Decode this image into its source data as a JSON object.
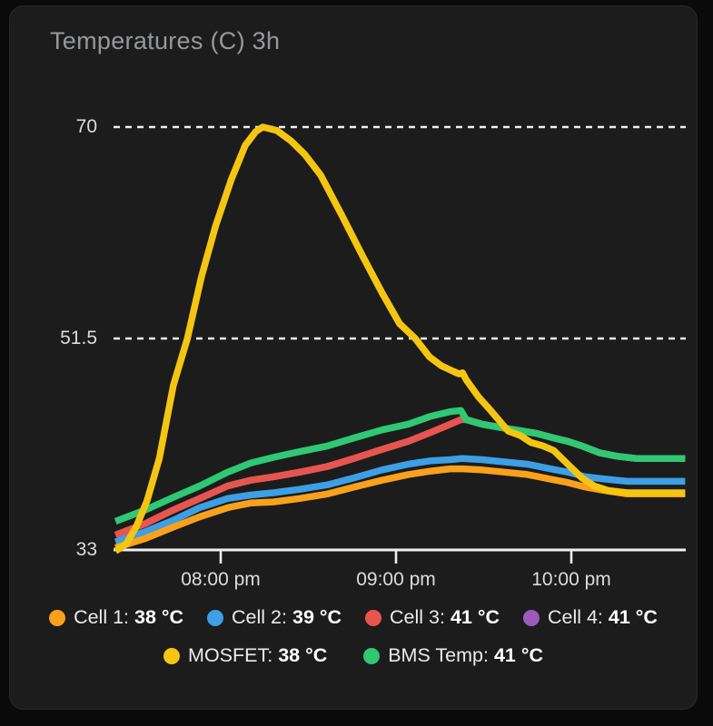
{
  "card": {
    "title": "Temperatures (C) 3h"
  },
  "colors": {
    "background": "#0a0a0a",
    "card_background": "#1c1c1d",
    "grid": "#efefef",
    "axis_text": "#dcdcdc",
    "title_text": "#96989a"
  },
  "chart_data": {
    "type": "line",
    "title": "Temperatures (C) 3h",
    "unit": "°C",
    "grid": "dashed horizontal",
    "legend_position": "bottom",
    "x_axis": {
      "range_hours": [
        19.4,
        22.65
      ],
      "ticks": [
        {
          "t": 20,
          "label": "08:00 pm"
        },
        {
          "t": 21,
          "label": "09:00 pm"
        },
        {
          "t": 22,
          "label": "10:00 pm"
        }
      ]
    },
    "y_axis": {
      "range": [
        33,
        70
      ],
      "ticks": [
        {
          "value": 70,
          "label": "70",
          "gridline": true
        },
        {
          "value": 51.5,
          "label": "51.5",
          "gridline": true
        },
        {
          "value": 33,
          "label": "33",
          "gridline": false
        }
      ]
    },
    "draw_order": [
      "cell4",
      "cell3",
      "bms",
      "cell2",
      "cell1",
      "mosfet"
    ],
    "series": [
      {
        "id": "cell1",
        "name": "Cell 1",
        "color": "#F9A11B",
        "current": "38 °C",
        "points": [
          [
            19.4,
            33.2
          ],
          [
            19.57,
            34.0
          ],
          [
            19.73,
            35.0
          ],
          [
            19.88,
            35.9
          ],
          [
            20.04,
            36.7
          ],
          [
            20.17,
            37.1
          ],
          [
            20.3,
            37.2
          ],
          [
            20.45,
            37.5
          ],
          [
            20.61,
            37.9
          ],
          [
            20.76,
            38.5
          ],
          [
            20.92,
            39.1
          ],
          [
            21.07,
            39.6
          ],
          [
            21.2,
            39.9
          ],
          [
            21.31,
            40.1
          ],
          [
            21.38,
            40.1
          ],
          [
            21.49,
            40.0
          ],
          [
            21.62,
            39.8
          ],
          [
            21.75,
            39.6
          ],
          [
            21.88,
            39.2
          ],
          [
            21.98,
            38.9
          ],
          [
            22.08,
            38.5
          ],
          [
            22.19,
            38.2
          ],
          [
            22.32,
            37.9
          ],
          [
            22.65,
            37.9
          ]
        ]
      },
      {
        "id": "cell2",
        "name": "Cell 2",
        "color": "#3D9FE5",
        "current": "39 °C",
        "points": [
          [
            19.4,
            33.7
          ],
          [
            19.57,
            34.6
          ],
          [
            19.73,
            35.6
          ],
          [
            19.88,
            36.7
          ],
          [
            20.04,
            37.5
          ],
          [
            20.17,
            37.8
          ],
          [
            20.3,
            38.0
          ],
          [
            20.45,
            38.3
          ],
          [
            20.61,
            38.7
          ],
          [
            20.76,
            39.3
          ],
          [
            20.92,
            40.0
          ],
          [
            21.07,
            40.5
          ],
          [
            21.2,
            40.8
          ],
          [
            21.31,
            40.9
          ],
          [
            21.38,
            41.0
          ],
          [
            21.49,
            40.9
          ],
          [
            21.62,
            40.7
          ],
          [
            21.75,
            40.5
          ],
          [
            21.88,
            40.1
          ],
          [
            21.98,
            39.8
          ],
          [
            22.08,
            39.4
          ],
          [
            22.19,
            39.2
          ],
          [
            22.32,
            39.0
          ],
          [
            22.65,
            39.0
          ]
        ]
      },
      {
        "id": "cell3",
        "name": "Cell 3",
        "color": "#E8554D",
        "current": "41 °C",
        "points": [
          [
            19.4,
            34.3
          ],
          [
            19.57,
            35.3
          ],
          [
            19.73,
            36.5
          ],
          [
            19.88,
            37.5
          ],
          [
            20.04,
            38.6
          ],
          [
            20.17,
            39.1
          ],
          [
            20.3,
            39.4
          ],
          [
            20.45,
            39.8
          ],
          [
            20.61,
            40.3
          ],
          [
            20.76,
            41.0
          ],
          [
            20.92,
            41.8
          ],
          [
            21.07,
            42.5
          ],
          [
            21.2,
            43.3
          ],
          [
            21.31,
            44.0
          ],
          [
            21.37,
            44.4
          ],
          [
            21.4,
            44.4
          ],
          [
            21.49,
            44.0
          ],
          [
            21.64,
            43.6
          ],
          [
            21.8,
            43.2
          ],
          [
            21.9,
            42.8
          ],
          [
            21.98,
            42.5
          ],
          [
            22.06,
            42.1
          ],
          [
            22.16,
            41.5
          ],
          [
            22.26,
            41.2
          ],
          [
            22.37,
            41.0
          ],
          [
            22.65,
            41.0
          ]
        ]
      },
      {
        "id": "cell4",
        "name": "Cell 4",
        "color": "#9E59BD",
        "current": "41 °C",
        "points": [
          [
            19.4,
            34.3
          ],
          [
            19.57,
            35.3
          ],
          [
            19.73,
            36.5
          ],
          [
            19.88,
            37.5
          ],
          [
            20.04,
            38.6
          ],
          [
            20.17,
            39.1
          ],
          [
            20.3,
            39.4
          ],
          [
            20.45,
            39.8
          ],
          [
            20.61,
            40.3
          ],
          [
            20.76,
            41.0
          ],
          [
            20.92,
            41.8
          ],
          [
            21.07,
            42.5
          ],
          [
            21.2,
            43.3
          ],
          [
            21.31,
            44.0
          ],
          [
            21.37,
            44.4
          ],
          [
            21.4,
            44.4
          ],
          [
            21.49,
            44.0
          ],
          [
            21.64,
            43.6
          ],
          [
            21.8,
            43.2
          ],
          [
            21.9,
            42.8
          ],
          [
            21.98,
            42.5
          ],
          [
            22.06,
            42.1
          ],
          [
            22.16,
            41.5
          ],
          [
            22.26,
            41.2
          ],
          [
            22.37,
            41.0
          ],
          [
            22.65,
            41.0
          ]
        ]
      },
      {
        "id": "mosfet",
        "name": "MOSFET",
        "color": "#F4C611",
        "current": "38 °C",
        "points": [
          [
            19.4,
            32.9
          ],
          [
            19.46,
            33.5
          ],
          [
            19.52,
            35.1
          ],
          [
            19.58,
            37.3
          ],
          [
            19.65,
            41.0
          ],
          [
            19.73,
            47.4
          ],
          [
            19.81,
            51.5
          ],
          [
            19.89,
            56.9
          ],
          [
            19.97,
            61.3
          ],
          [
            20.06,
            65.4
          ],
          [
            20.14,
            68.4
          ],
          [
            20.2,
            69.6
          ],
          [
            20.24,
            70.0
          ],
          [
            20.32,
            69.7
          ],
          [
            20.4,
            68.8
          ],
          [
            20.48,
            67.6
          ],
          [
            20.57,
            65.8
          ],
          [
            20.69,
            62.3
          ],
          [
            20.81,
            58.7
          ],
          [
            20.92,
            55.5
          ],
          [
            21.02,
            52.8
          ],
          [
            21.11,
            51.5
          ],
          [
            21.19,
            49.9
          ],
          [
            21.26,
            49.1
          ],
          [
            21.33,
            48.6
          ],
          [
            21.36,
            48.4
          ],
          [
            21.38,
            48.5
          ],
          [
            21.4,
            47.9
          ],
          [
            21.47,
            46.4
          ],
          [
            21.54,
            45.2
          ],
          [
            21.64,
            43.4
          ],
          [
            21.71,
            43.0
          ],
          [
            21.77,
            42.4
          ],
          [
            21.84,
            42.1
          ],
          [
            21.9,
            41.7
          ],
          [
            21.98,
            40.5
          ],
          [
            22.06,
            39.3
          ],
          [
            22.13,
            38.6
          ],
          [
            22.21,
            38.2
          ],
          [
            22.32,
            38.0
          ],
          [
            22.65,
            38.0
          ]
        ]
      },
      {
        "id": "bms",
        "name": "BMS Temp",
        "color": "#2FC873",
        "current": "41 °C",
        "points": [
          [
            19.4,
            35.5
          ],
          [
            19.57,
            36.5
          ],
          [
            19.73,
            37.6
          ],
          [
            19.88,
            38.6
          ],
          [
            20.04,
            39.8
          ],
          [
            20.17,
            40.6
          ],
          [
            20.3,
            41.1
          ],
          [
            20.45,
            41.6
          ],
          [
            20.61,
            42.1
          ],
          [
            20.76,
            42.8
          ],
          [
            20.92,
            43.5
          ],
          [
            21.07,
            44.0
          ],
          [
            21.2,
            44.7
          ],
          [
            21.31,
            45.1
          ],
          [
            21.37,
            45.2
          ],
          [
            21.4,
            44.4
          ],
          [
            21.49,
            44.0
          ],
          [
            21.64,
            43.6
          ],
          [
            21.8,
            43.2
          ],
          [
            21.9,
            42.8
          ],
          [
            21.98,
            42.5
          ],
          [
            22.06,
            42.1
          ],
          [
            22.16,
            41.5
          ],
          [
            22.26,
            41.2
          ],
          [
            22.37,
            41.0
          ],
          [
            22.65,
            41.0
          ]
        ]
      }
    ]
  },
  "legend": {
    "separator": ": ",
    "rows": [
      [
        "cell1",
        "cell2",
        "cell3",
        "cell4"
      ],
      [
        "mosfet",
        "bms"
      ]
    ]
  }
}
